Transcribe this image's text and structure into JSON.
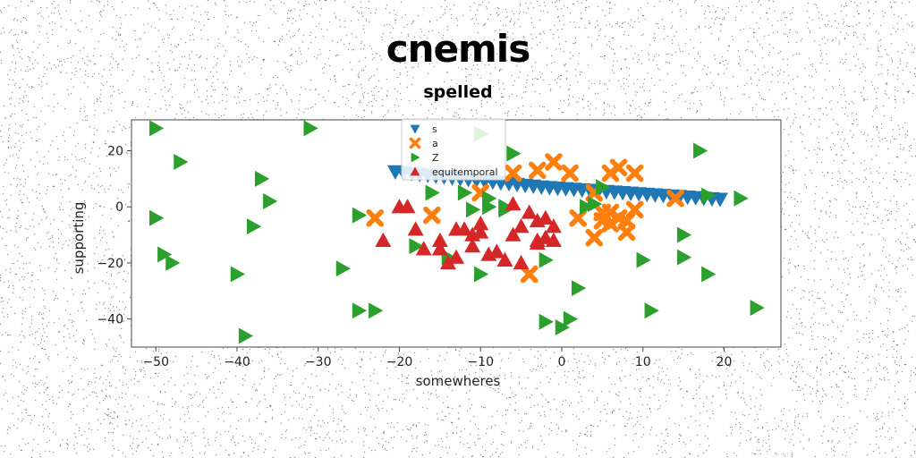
{
  "chart_data": {
    "type": "scatter",
    "title": "cnemis",
    "subtitle": "spelled",
    "xlabel": "somewheres",
    "ylabel": "supporting",
    "xlim": [
      -53,
      27
    ],
    "ylim": [
      -50,
      31
    ],
    "xticks": [
      "−50",
      "−40",
      "−30",
      "−20",
      "−10",
      "0",
      "10",
      "20"
    ],
    "xtick_values": [
      -50,
      -40,
      -30,
      -20,
      -10,
      0,
      10,
      20
    ],
    "yticks": [
      "20",
      "0",
      "−20",
      "−40"
    ],
    "ytick_values": [
      20,
      0,
      -20,
      -40
    ],
    "grid": false,
    "legend": {
      "position": "top-center"
    },
    "series": [
      {
        "name": "s",
        "marker": "triangle-down",
        "color": "#1f77b4",
        "points": [
          [
            -20.5,
            12.5
          ],
          [
            -19.5,
            12.2
          ],
          [
            -18.5,
            11.9
          ],
          [
            -17.5,
            11.6
          ],
          [
            -16.5,
            11.3
          ],
          [
            -15.5,
            11.0
          ],
          [
            -14.5,
            10.7
          ],
          [
            -13.5,
            10.4
          ],
          [
            -12.5,
            10.1
          ],
          [
            -11.5,
            9.8
          ],
          [
            -10.5,
            9.5
          ],
          [
            -9.5,
            9.2
          ],
          [
            -8.5,
            8.9
          ],
          [
            -7.5,
            8.6
          ],
          [
            -6.5,
            8.3
          ],
          [
            -5.5,
            8.0
          ],
          [
            -4.5,
            7.7
          ],
          [
            -3.5,
            7.4
          ],
          [
            -2.5,
            7.1
          ],
          [
            -1.5,
            6.9
          ],
          [
            -0.5,
            6.7
          ],
          [
            0.5,
            6.5
          ],
          [
            1.5,
            6.3
          ],
          [
            2.5,
            6.1
          ],
          [
            3.5,
            5.9
          ],
          [
            4.5,
            5.7
          ],
          [
            5.5,
            5.5
          ],
          [
            6.5,
            5.3
          ],
          [
            7.5,
            5.1
          ],
          [
            8.5,
            4.9
          ],
          [
            9.5,
            4.7
          ],
          [
            10.5,
            4.5
          ],
          [
            11.5,
            4.3
          ],
          [
            12.5,
            4.1
          ],
          [
            13.5,
            3.9
          ],
          [
            14.5,
            3.7
          ],
          [
            15.5,
            3.5
          ],
          [
            16.5,
            3.3
          ],
          [
            17.5,
            3.1
          ],
          [
            18.5,
            2.9
          ],
          [
            19.5,
            2.7
          ]
        ]
      },
      {
        "name": "a",
        "marker": "x-filled",
        "color": "#ff7f0e",
        "points": [
          [
            -23,
            -4
          ],
          [
            -16,
            -3
          ],
          [
            -10,
            5
          ],
          [
            -6,
            12
          ],
          [
            -3,
            13
          ],
          [
            -1,
            16
          ],
          [
            1,
            12
          ],
          [
            2,
            -4
          ],
          [
            4,
            -11
          ],
          [
            4,
            5
          ],
          [
            5,
            -2
          ],
          [
            5,
            -5
          ],
          [
            6,
            -2
          ],
          [
            6,
            12
          ],
          [
            7,
            14
          ],
          [
            7,
            -4
          ],
          [
            8,
            -5
          ],
          [
            8,
            -9
          ],
          [
            9,
            -1
          ],
          [
            9,
            12
          ],
          [
            14,
            3
          ],
          [
            6,
            -6
          ],
          [
            -4,
            -24
          ]
        ]
      },
      {
        "name": "Z",
        "marker": "triangle-right",
        "color": "#2ca02c",
        "points": [
          [
            -50,
            28
          ],
          [
            -47,
            16
          ],
          [
            -50,
            -4
          ],
          [
            -49,
            -17
          ],
          [
            -48,
            -20
          ],
          [
            -40,
            -24
          ],
          [
            -39,
            -46
          ],
          [
            -38,
            -7
          ],
          [
            -37,
            10
          ],
          [
            -36,
            2
          ],
          [
            -31,
            28
          ],
          [
            -27,
            -22
          ],
          [
            -25,
            -3
          ],
          [
            -25,
            -37
          ],
          [
            -23,
            -37
          ],
          [
            -18,
            -14
          ],
          [
            -16,
            5
          ],
          [
            -14,
            -18
          ],
          [
            -12,
            5
          ],
          [
            -10,
            -24
          ],
          [
            -11,
            -1
          ],
          [
            -9,
            0
          ],
          [
            -9,
            3
          ],
          [
            -7,
            -1
          ],
          [
            -6,
            19
          ],
          [
            -7,
            0
          ],
          [
            -2,
            -19
          ],
          [
            -2,
            -41
          ],
          [
            0,
            -43
          ],
          [
            1,
            -40
          ],
          [
            2,
            -29
          ],
          [
            3,
            0
          ],
          [
            4,
            1
          ],
          [
            5,
            7
          ],
          [
            10,
            -19
          ],
          [
            11,
            -37
          ],
          [
            15,
            -10
          ],
          [
            15,
            -18
          ],
          [
            17,
            20
          ],
          [
            18,
            -24
          ],
          [
            18,
            4
          ],
          [
            22,
            3
          ],
          [
            24,
            -36
          ],
          [
            -10,
            26
          ]
        ]
      },
      {
        "name": "equitemporal",
        "marker": "triangle-up",
        "color": "#d62728",
        "points": [
          [
            -22,
            -12
          ],
          [
            -20,
            0
          ],
          [
            -19,
            0
          ],
          [
            -18,
            -8
          ],
          [
            -17,
            -15
          ],
          [
            -15,
            -12
          ],
          [
            -14,
            -20
          ],
          [
            -13,
            -18
          ],
          [
            -12,
            -8
          ],
          [
            -11,
            -10
          ],
          [
            -11,
            -14
          ],
          [
            -10,
            -6
          ],
          [
            -10,
            -9
          ],
          [
            -9,
            -17
          ],
          [
            -8,
            -16
          ],
          [
            -7,
            -19
          ],
          [
            -6,
            1
          ],
          [
            -6,
            -10
          ],
          [
            -5,
            -7
          ],
          [
            -5,
            -20
          ],
          [
            -4,
            -2
          ],
          [
            -3,
            -5
          ],
          [
            -3,
            -12
          ],
          [
            -2,
            -4
          ],
          [
            -2,
            -11
          ],
          [
            -1,
            -7
          ],
          [
            -1,
            -12
          ],
          [
            -3,
            -13
          ],
          [
            -13,
            -8
          ],
          [
            -15,
            -15
          ]
        ]
      }
    ]
  }
}
